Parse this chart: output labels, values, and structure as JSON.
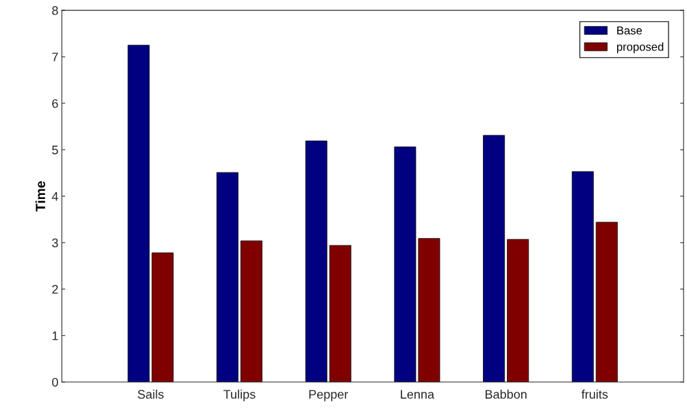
{
  "chart_data": {
    "type": "bar",
    "ylabel": "Time",
    "categories": [
      "Sails",
      "Tulips",
      "Pepper",
      "Lenna",
      "Babbon",
      "fruits"
    ],
    "series": [
      {
        "name": "Base",
        "color": "#000080",
        "values": [
          7.25,
          4.51,
          5.19,
          5.06,
          5.31,
          4.53
        ]
      },
      {
        "name": "proposed",
        "color": "#800000",
        "values": [
          2.78,
          3.04,
          2.94,
          3.09,
          3.07,
          3.44
        ]
      }
    ],
    "ylim": [
      0,
      8
    ],
    "yticks": [
      0,
      1,
      2,
      3,
      4,
      5,
      6,
      7,
      8
    ],
    "legend": "top right",
    "grid": false
  }
}
